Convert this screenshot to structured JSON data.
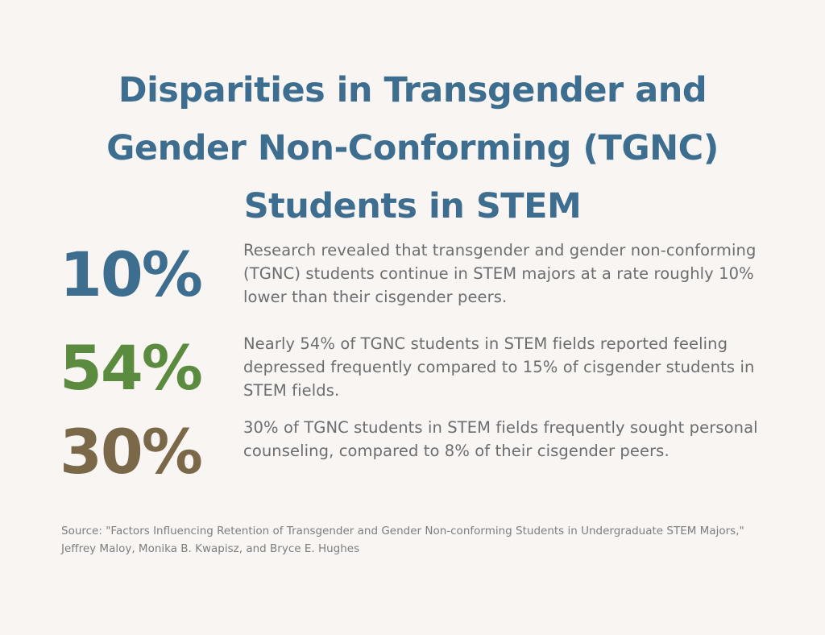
{
  "title": "Disparities in Transgender and Gender Non-Conforming (TGNC) Students in STEM",
  "stats": [
    {
      "value": "10%",
      "text": "Research revealed that transgender and gender non-conforming (TGNC) students continue in STEM majors at a rate roughly 10% lower than their cisgender peers."
    },
    {
      "value": "54%",
      "text": "Nearly 54% of TGNC students in STEM fields reported feeling depressed frequently compared to 15% of cisgender students in STEM fields."
    },
    {
      "value": "30%",
      "text": "30% of TGNC students in STEM fields frequently sought personal counseling, compared to 8% of their cisgender peers."
    }
  ],
  "source": "Source: \"Factors Influencing Retention of Transgender and Gender Non-conforming Students in Undergraduate STEM Majors,\" Jeffrey Maloy, Monika B. Kwapisz, and Bryce E. Hughes",
  "colors": {
    "background": "#f8f5f2",
    "title": "#3d6e8f",
    "stat1": "#3d6e8f",
    "stat2": "#5b8b3e",
    "stat3": "#7a6848",
    "body_text": "#6d6d6d"
  }
}
